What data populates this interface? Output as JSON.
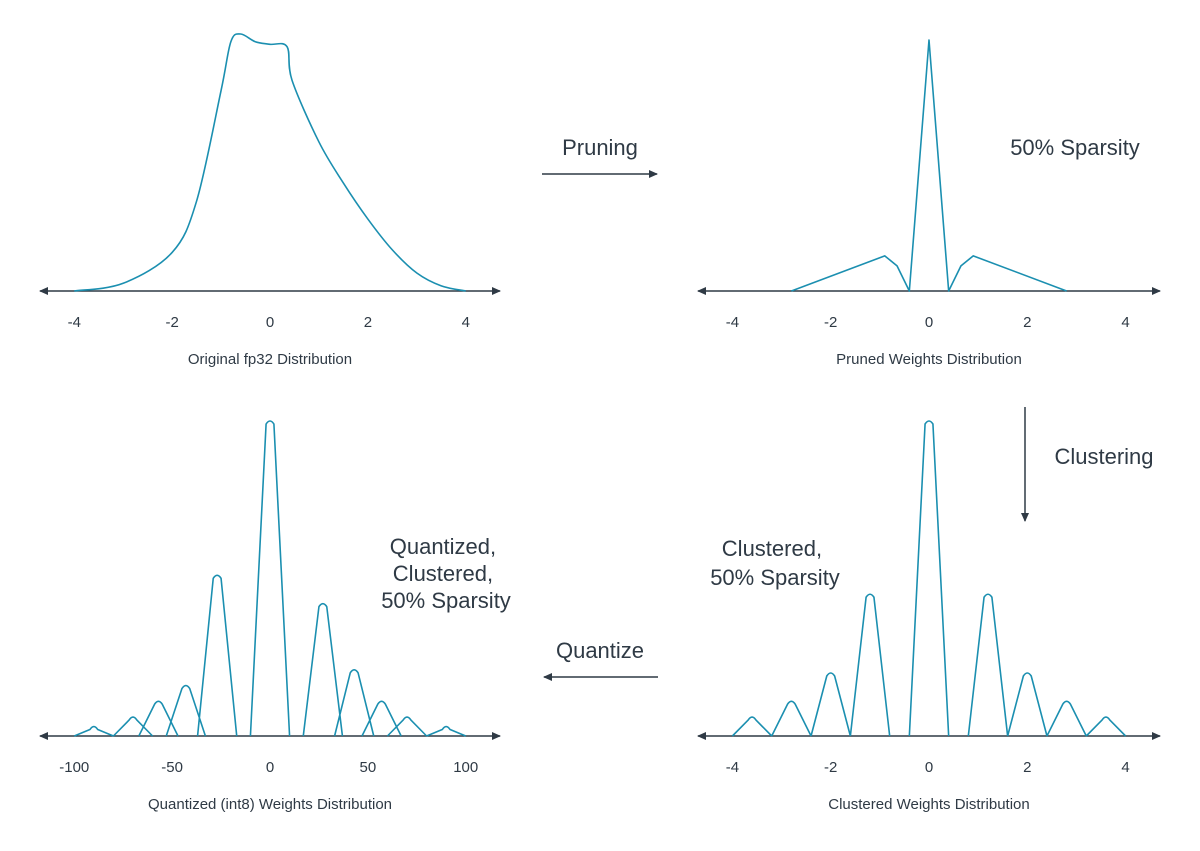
{
  "colors": {
    "curve": "#1b8fb0",
    "axis": "#2f3a45",
    "text": "#2f3a45"
  },
  "transitions": {
    "pruning": "Pruning",
    "clustering": "Clustering",
    "quantize": "Quantize"
  },
  "annotations": {
    "pruned": [
      "50% Sparsity"
    ],
    "clustered": [
      "Clustered,",
      "50% Sparsity"
    ],
    "quantized": [
      "Quantized,",
      "Clustered,",
      "50% Sparsity"
    ]
  },
  "chart_data": [
    {
      "id": "original",
      "type": "line",
      "title": "Original fp32 Distribution",
      "x_ticks": [
        "-4",
        "-2",
        "0",
        "2",
        "4"
      ],
      "xlim": [
        -4.7,
        4.7
      ],
      "ylim": [
        0,
        1
      ],
      "series": [
        {
          "x": [
            -4,
            -3,
            -2,
            -1.5,
            -1,
            -0.8,
            -0.6,
            -0.3,
            0,
            0.35,
            0.45,
            1,
            1.5,
            2,
            2.5,
            3,
            3.5,
            4
          ],
          "y": [
            0,
            0.03,
            0.15,
            0.35,
            0.78,
            0.97,
            1.0,
            0.97,
            0.96,
            0.95,
            0.82,
            0.58,
            0.42,
            0.28,
            0.16,
            0.07,
            0.02,
            0
          ]
        }
      ]
    },
    {
      "id": "pruned",
      "type": "line",
      "title": "Pruned Weights Distribution",
      "x_ticks": [
        "-4",
        "-2",
        "0",
        "2",
        "4"
      ],
      "xlim": [
        -4.7,
        4.7
      ],
      "ylim": [
        0,
        1
      ],
      "series": [
        {
          "x": [
            -2.8,
            -0.9,
            -0.65,
            -0.4,
            0,
            0.4,
            0.65,
            0.9,
            2.8
          ],
          "y": [
            0,
            0.14,
            0.1,
            0,
            1.0,
            0,
            0.1,
            0.14,
            0
          ]
        }
      ]
    },
    {
      "id": "clustered",
      "type": "line",
      "title": "Clustered Weights Distribution",
      "x_ticks": [
        "-4",
        "-2",
        "0",
        "2",
        "4"
      ],
      "xlim": [
        -4.7,
        4.7
      ],
      "ylim": [
        0,
        1
      ],
      "peaks": [
        {
          "x": -3.6,
          "y": 0.06,
          "w": 0.4
        },
        {
          "x": -2.8,
          "y": 0.11,
          "w": 0.4
        },
        {
          "x": -2.0,
          "y": 0.2,
          "w": 0.4
        },
        {
          "x": -1.2,
          "y": 0.45,
          "w": 0.4
        },
        {
          "x": 0,
          "y": 1.0,
          "w": 0.4
        },
        {
          "x": 1.2,
          "y": 0.45,
          "w": 0.4
        },
        {
          "x": 2.0,
          "y": 0.2,
          "w": 0.4
        },
        {
          "x": 2.8,
          "y": 0.11,
          "w": 0.4
        },
        {
          "x": 3.6,
          "y": 0.06,
          "w": 0.4
        }
      ]
    },
    {
      "id": "quantized",
      "type": "line",
      "title": "Quantized (int8) Weights Distribution",
      "x_ticks": [
        "-100",
        "-50",
        "0",
        "50",
        "100"
      ],
      "xlim": [
        -117.5,
        117.5
      ],
      "ylim": [
        0,
        1
      ],
      "peaks": [
        {
          "x": -90,
          "y": 0.03,
          "w": 10
        },
        {
          "x": -70,
          "y": 0.06,
          "w": 10
        },
        {
          "x": -57,
          "y": 0.11,
          "w": 10
        },
        {
          "x": -43,
          "y": 0.16,
          "w": 10
        },
        {
          "x": -27,
          "y": 0.51,
          "w": 10
        },
        {
          "x": 0,
          "y": 1.0,
          "w": 10
        },
        {
          "x": 27,
          "y": 0.42,
          "w": 10
        },
        {
          "x": 43,
          "y": 0.21,
          "w": 10
        },
        {
          "x": 57,
          "y": 0.11,
          "w": 10
        },
        {
          "x": 70,
          "y": 0.06,
          "w": 10
        },
        {
          "x": 90,
          "y": 0.03,
          "w": 10
        }
      ]
    }
  ]
}
